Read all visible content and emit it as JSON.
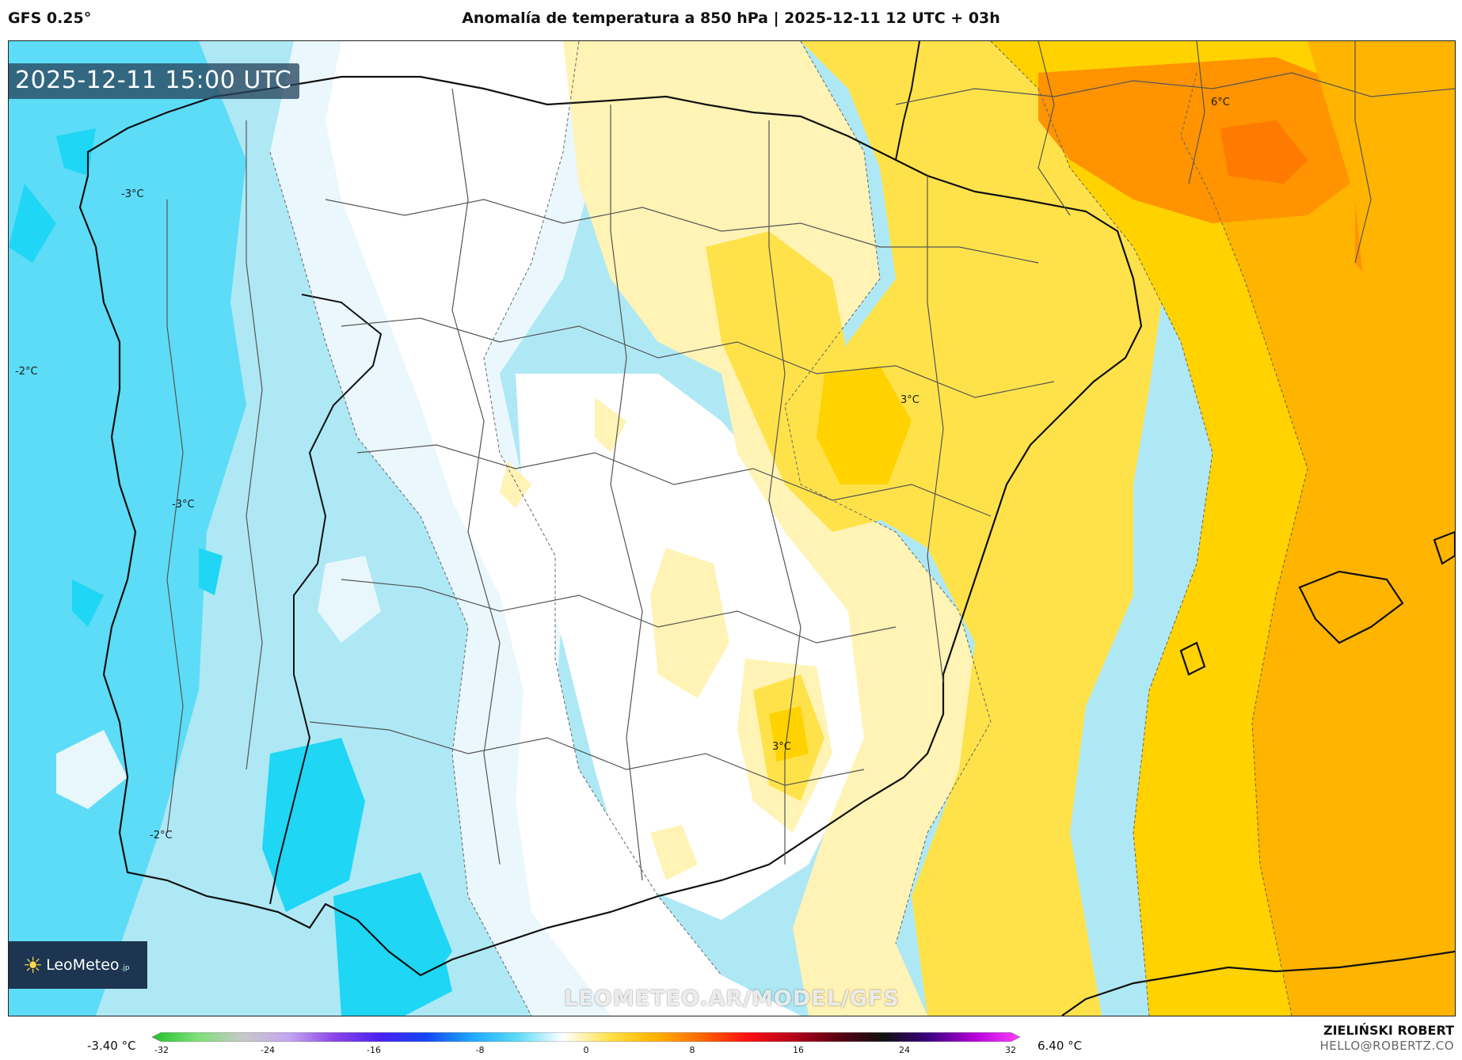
{
  "header": {
    "model": "GFS 0.25°",
    "title": "Anomalía de temperatura a 850 hPa | 2025-12-11 12 UTC + 03h"
  },
  "map": {
    "valid_time": "2025-12-11 15:00 UTC",
    "contour_labels": [
      "-3°C",
      "-2°C",
      "-3°C",
      "-2°C",
      "3°C",
      "3°C",
      "6°C"
    ],
    "watermark": "LEOMETEO.AR/MODEL/GFS",
    "logo": {
      "name": "LeoMeteo",
      "suffix": ".jp"
    },
    "colors": {
      "cold_dark": "#1fd6f5",
      "cold": "#5cdcf7",
      "cold_light": "#aee8f5",
      "near_zero": "#eaf7fd",
      "neutral": "#ffffff",
      "warm_light": "#fff3b5",
      "warm": "#ffe24a",
      "warm_mid": "#ffd200",
      "warm_orange": "#ffb400",
      "warm_dark": "#ff9300",
      "hot": "#ff7a00"
    }
  },
  "colorbar": {
    "min_label": "-3.40 °C",
    "max_label": "6.40 °C",
    "ticks": [
      "-32",
      "-24",
      "-16",
      "-8",
      "0",
      "8",
      "16",
      "24",
      "32"
    ],
    "stops": [
      "#22c22a",
      "#7fe07a",
      "#c8c8c8",
      "#c4a6f0",
      "#8a44e8",
      "#4a1ff0",
      "#1246f5",
      "#1ea8ff",
      "#5cdcf7",
      "#ffffff",
      "#ffe24a",
      "#ffb400",
      "#ff6a00",
      "#ff1010",
      "#b8001a",
      "#5a0010",
      "#101010",
      "#3a0080",
      "#b400d8",
      "#ff40ff"
    ]
  },
  "footer": {
    "author": "ZIELIŃSKI ROBERT",
    "email": "HELLO@ROBERTZ.CO"
  }
}
